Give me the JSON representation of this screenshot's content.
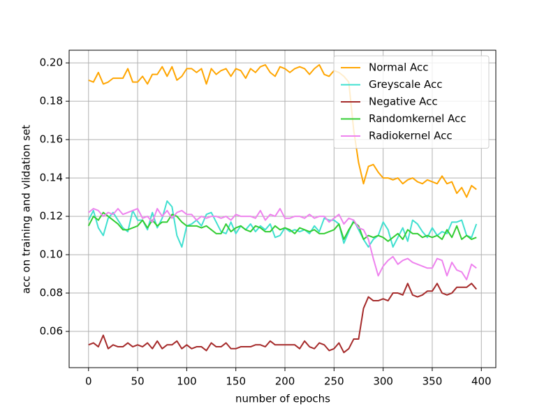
{
  "chart_data": {
    "type": "line",
    "xlabel": "number of epochs",
    "ylabel": "acc on training and vlidation set",
    "x": [
      0,
      5,
      10,
      15,
      20,
      25,
      30,
      35,
      40,
      45,
      50,
      55,
      60,
      65,
      70,
      75,
      80,
      85,
      90,
      95,
      100,
      105,
      110,
      115,
      120,
      125,
      130,
      135,
      140,
      145,
      150,
      155,
      160,
      165,
      170,
      175,
      180,
      185,
      190,
      195,
      200,
      205,
      210,
      215,
      220,
      225,
      230,
      235,
      240,
      245,
      250,
      255,
      260,
      265,
      270,
      275,
      280,
      285,
      290,
      295,
      300,
      305,
      310,
      315,
      320,
      325,
      330,
      335,
      340,
      345,
      350,
      355,
      360,
      365,
      370,
      375,
      380,
      385,
      390,
      395
    ],
    "series": [
      {
        "name": "Normal Acc",
        "color": "#ffa500",
        "values": [
          0.191,
          0.19,
          0.195,
          0.189,
          0.19,
          0.192,
          0.192,
          0.192,
          0.197,
          0.19,
          0.19,
          0.193,
          0.189,
          0.194,
          0.194,
          0.198,
          0.193,
          0.198,
          0.191,
          0.193,
          0.197,
          0.197,
          0.195,
          0.197,
          0.189,
          0.197,
          0.194,
          0.196,
          0.197,
          0.193,
          0.197,
          0.196,
          0.192,
          0.197,
          0.195,
          0.198,
          0.199,
          0.195,
          0.193,
          0.198,
          0.197,
          0.195,
          0.197,
          0.198,
          0.197,
          0.194,
          0.197,
          0.199,
          0.194,
          0.193,
          0.196,
          0.195,
          0.193,
          0.19,
          0.165,
          0.148,
          0.137,
          0.146,
          0.147,
          0.143,
          0.14,
          0.14,
          0.139,
          0.14,
          0.137,
          0.139,
          0.14,
          0.138,
          0.137,
          0.139,
          0.138,
          0.137,
          0.141,
          0.137,
          0.138,
          0.132,
          0.135,
          0.13,
          0.136,
          0.134
        ]
      },
      {
        "name": "Greyscale Acc",
        "color": "#40e0d0",
        "values": [
          0.118,
          0.123,
          0.114,
          0.11,
          0.119,
          0.122,
          0.118,
          0.114,
          0.112,
          0.123,
          0.118,
          0.118,
          0.113,
          0.122,
          0.114,
          0.119,
          0.128,
          0.125,
          0.11,
          0.104,
          0.115,
          0.116,
          0.118,
          0.115,
          0.121,
          0.122,
          0.117,
          0.112,
          0.111,
          0.117,
          0.111,
          0.115,
          0.113,
          0.116,
          0.112,
          0.115,
          0.113,
          0.116,
          0.109,
          0.11,
          0.114,
          0.112,
          0.113,
          0.112,
          0.113,
          0.111,
          0.115,
          0.112,
          0.119,
          0.118,
          0.118,
          0.116,
          0.106,
          0.112,
          0.118,
          0.113,
          0.108,
          0.104,
          0.108,
          0.11,
          0.117,
          0.113,
          0.104,
          0.109,
          0.114,
          0.107,
          0.118,
          0.116,
          0.112,
          0.109,
          0.114,
          0.11,
          0.112,
          0.111,
          0.117,
          0.117,
          0.118,
          0.11,
          0.109,
          0.116
        ]
      },
      {
        "name": "Negative Acc",
        "color": "#a52a2a",
        "values": [
          0.053,
          0.054,
          0.052,
          0.058,
          0.051,
          0.053,
          0.052,
          0.052,
          0.054,
          0.052,
          0.053,
          0.052,
          0.054,
          0.051,
          0.055,
          0.051,
          0.053,
          0.053,
          0.055,
          0.051,
          0.053,
          0.051,
          0.052,
          0.052,
          0.05,
          0.054,
          0.052,
          0.052,
          0.054,
          0.051,
          0.051,
          0.052,
          0.052,
          0.052,
          0.053,
          0.053,
          0.052,
          0.055,
          0.053,
          0.053,
          0.053,
          0.053,
          0.053,
          0.051,
          0.055,
          0.052,
          0.051,
          0.054,
          0.053,
          0.05,
          0.051,
          0.054,
          0.049,
          0.051,
          0.056,
          0.056,
          0.072,
          0.078,
          0.076,
          0.076,
          0.077,
          0.076,
          0.08,
          0.08,
          0.079,
          0.085,
          0.079,
          0.078,
          0.079,
          0.081,
          0.081,
          0.085,
          0.08,
          0.079,
          0.08,
          0.083,
          0.083,
          0.083,
          0.085,
          0.082
        ]
      },
      {
        "name": "Randomkernel Acc",
        "color": "#32cd32",
        "values": [
          0.115,
          0.12,
          0.118,
          0.122,
          0.12,
          0.118,
          0.116,
          0.113,
          0.113,
          0.114,
          0.115,
          0.118,
          0.114,
          0.118,
          0.115,
          0.117,
          0.117,
          0.121,
          0.12,
          0.117,
          0.115,
          0.115,
          0.115,
          0.114,
          0.115,
          0.113,
          0.111,
          0.111,
          0.116,
          0.112,
          0.114,
          0.115,
          0.113,
          0.112,
          0.115,
          0.114,
          0.112,
          0.112,
          0.115,
          0.113,
          0.114,
          0.113,
          0.111,
          0.114,
          0.113,
          0.112,
          0.113,
          0.111,
          0.111,
          0.112,
          0.113,
          0.116,
          0.108,
          0.113,
          0.117,
          0.115,
          0.108,
          0.11,
          0.109,
          0.11,
          0.109,
          0.107,
          0.109,
          0.111,
          0.108,
          0.113,
          0.111,
          0.111,
          0.109,
          0.11,
          0.109,
          0.11,
          0.108,
          0.113,
          0.109,
          0.115,
          0.108,
          0.11,
          0.108,
          0.109
        ]
      },
      {
        "name": "Radiokernel Acc",
        "color": "#ee82ee",
        "values": [
          0.122,
          0.124,
          0.123,
          0.12,
          0.122,
          0.121,
          0.124,
          0.121,
          0.122,
          0.123,
          0.124,
          0.119,
          0.12,
          0.117,
          0.124,
          0.12,
          0.123,
          0.119,
          0.122,
          0.123,
          0.121,
          0.121,
          0.118,
          0.12,
          0.119,
          0.12,
          0.12,
          0.119,
          0.12,
          0.118,
          0.121,
          0.12,
          0.12,
          0.12,
          0.119,
          0.123,
          0.118,
          0.121,
          0.12,
          0.124,
          0.119,
          0.119,
          0.12,
          0.12,
          0.119,
          0.121,
          0.119,
          0.12,
          0.12,
          0.117,
          0.119,
          0.121,
          0.116,
          0.119,
          0.118,
          0.114,
          0.113,
          0.108,
          0.098,
          0.089,
          0.094,
          0.097,
          0.099,
          0.095,
          0.097,
          0.098,
          0.096,
          0.095,
          0.094,
          0.093,
          0.093,
          0.098,
          0.097,
          0.089,
          0.096,
          0.092,
          0.091,
          0.087,
          0.095,
          0.093
        ]
      }
    ],
    "xlim": [
      -19.75,
      414.75
    ],
    "xticks": [
      0,
      50,
      100,
      150,
      200,
      250,
      300,
      350,
      400
    ],
    "ylim": [
      0.0411,
      0.2066
    ],
    "yticks": [
      0.06,
      0.08,
      {
        "value": 0.1,
        "label": "0.10"
      },
      0.12,
      0.14,
      0.16,
      0.18,
      {
        "value": 0.2,
        "label": "0.20"
      }
    ],
    "grid": true,
    "legend": "upper right"
  }
}
